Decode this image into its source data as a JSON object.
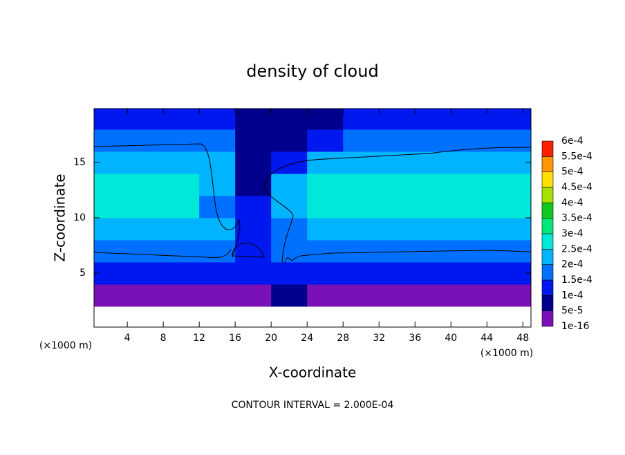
{
  "chart_data": {
    "type": "contour",
    "title": "density of cloud",
    "x_label": "X-coordinate",
    "y_label": "Z-coordinate",
    "x_unit": "(×1000 m)",
    "y_unit": "(×1000 m)",
    "footer": "CONTOUR INTERVAL = 2.000E-04",
    "xlim": [
      0.3,
      48.9
    ],
    "ylim": [
      0.125,
      19.875
    ],
    "xticks": [
      4,
      8,
      12,
      16,
      20,
      24,
      28,
      32,
      36,
      40,
      44,
      48
    ],
    "yticks": [
      5,
      10,
      15
    ],
    "x": [
      2,
      6,
      10,
      14,
      18,
      22,
      26,
      30,
      34,
      38,
      42,
      46,
      50
    ],
    "y": [
      1,
      3,
      5,
      7,
      9,
      11,
      13,
      15,
      17,
      19
    ],
    "z": [
      [
        null,
        null,
        null,
        null,
        null,
        null,
        null,
        null,
        null,
        null,
        null,
        null,
        null
      ],
      [
        4e-05,
        4e-05,
        4e-05,
        4e-05,
        4e-05,
        6e-05,
        4e-05,
        4e-05,
        4e-05,
        4e-05,
        4e-05,
        4e-05,
        4e-05
      ],
      [
        0.00012,
        0.00012,
        0.00012,
        0.00012,
        0.0001,
        0.0001,
        0.00012,
        0.00012,
        0.00012,
        0.00012,
        0.00012,
        0.00012,
        0.00012
      ],
      [
        0.00019,
        0.00019,
        0.00019,
        0.00019,
        0.00013,
        0.00016,
        0.00019,
        0.00019,
        0.00019,
        0.00019,
        0.00019,
        0.00019,
        0.00019
      ],
      [
        0.00023,
        0.00023,
        0.00023,
        0.00022,
        0.00012,
        0.00018,
        0.00023,
        0.00023,
        0.00023,
        0.00023,
        0.00023,
        0.00023,
        0.00023
      ],
      [
        0.00026,
        0.00026,
        0.00026,
        0.00016,
        0.0001,
        0.00021,
        0.00026,
        0.00026,
        0.00026,
        0.00026,
        0.00026,
        0.00026,
        0.00026
      ],
      [
        0.00026,
        0.00026,
        0.00026,
        0.00021,
        8e-05,
        0.00022,
        0.00026,
        0.00026,
        0.00026,
        0.00026,
        0.00026,
        0.00026,
        0.00026
      ],
      [
        0.00021,
        0.00021,
        0.00021,
        0.0002,
        7e-05,
        0.00012,
        0.00021,
        0.00021,
        0.00021,
        0.00021,
        0.00021,
        0.00021,
        0.00021
      ],
      [
        0.00015,
        0.00015,
        0.00015,
        0.00015,
        8e-05,
        6e-05,
        0.00014,
        0.00015,
        0.00015,
        0.00015,
        0.00015,
        0.00015,
        0.00015
      ],
      [
        0.0001,
        0.0001,
        0.0001,
        0.0001,
        9e-05,
        5e-05,
        9e-05,
        0.0001,
        0.0001,
        0.0001,
        0.0001,
        0.0001,
        0.0001
      ]
    ],
    "colorbar": {
      "ticks": [
        1e-16,
        {
          "value": 5e-05,
          "label": "5e-5"
        },
        {
          "value": 0.0001,
          "label": "1e-4"
        },
        {
          "value": 0.00015,
          "label": "1.5e-4"
        },
        {
          "value": 0.0002,
          "label": "2e-4"
        },
        {
          "value": 0.00025,
          "label": "2.5e-4"
        },
        {
          "value": 0.0003,
          "label": "3e-4"
        },
        {
          "value": 0.00035,
          "label": "3.5e-4"
        },
        {
          "value": 0.0004,
          "label": "4e-4"
        },
        {
          "value": 0.00045,
          "label": "4.5e-4"
        },
        {
          "value": 0.0005,
          "label": "5e-4"
        },
        {
          "value": 0.00055,
          "label": "5.5e-4"
        },
        {
          "value": 0.0006,
          "label": "6e-4"
        }
      ],
      "colors": [
        "#7a10b8",
        "#00008c",
        "#0018f0",
        "#0070ff",
        "#00b4ff",
        "#00e8d8",
        "#00e878",
        "#10c820",
        "#a8e000",
        "#ffe000",
        "#ff9800",
        "#ff2000",
        "#ff8080"
      ]
    }
  }
}
